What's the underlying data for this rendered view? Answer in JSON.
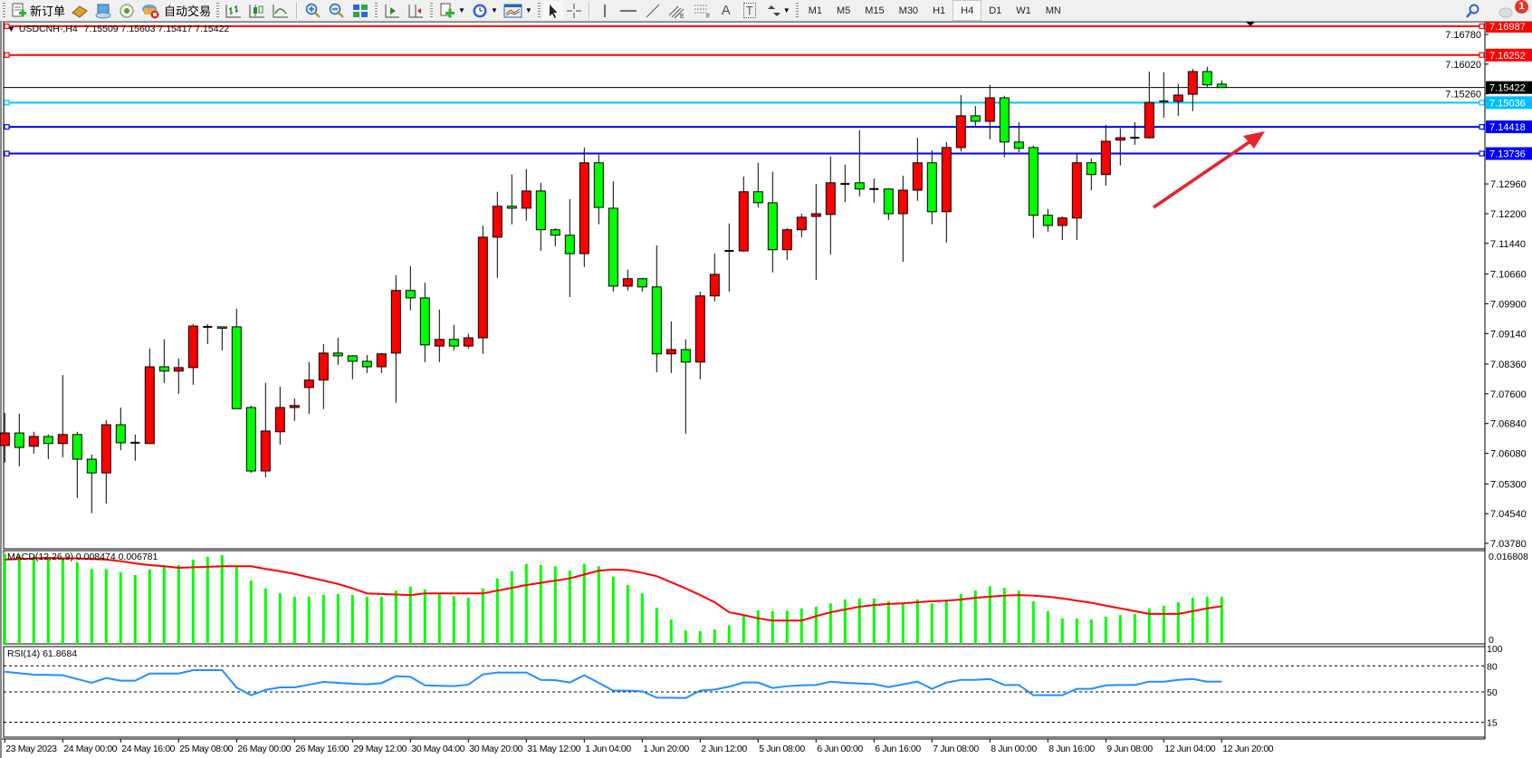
{
  "toolbar": {
    "new_order": "新订单",
    "auto_trading": "自动交易",
    "timeframes": [
      "M1",
      "M5",
      "M15",
      "M30",
      "H1",
      "H4",
      "D1",
      "W1",
      "MN"
    ],
    "active_timeframe": "H4",
    "notification_count": "1",
    "tools": {
      "fibo_label": "E",
      "fibo_channel_label": "F",
      "text_label": "A",
      "text_label_tool": "T"
    }
  },
  "chart": {
    "symbol_timeframe": "USDCNH-,H4",
    "ohlc": "7.15509 7.15603 7.15417 7.15422",
    "macd_label": "MACD(12,26,9) 0.008474 0.006781",
    "rsi_label": "RSI(14) 61.8684",
    "colors": {
      "bull": "#ff0000",
      "bear": "#00ff00",
      "macd_hist": "#00ff00",
      "macd_signal": "#ff0000",
      "rsi": "#1e90ff",
      "arrow": "#e8222a"
    }
  },
  "chart_data": {
    "type": "candlestick",
    "price_axis_ticks": [
      "7.16780",
      "7.16020",
      "7.15260",
      "7.12960",
      "7.12200",
      "7.11440",
      "7.10660",
      "7.09900",
      "7.09140",
      "7.08360",
      "7.07600",
      "7.06840",
      "7.06080",
      "7.05300",
      "7.04540",
      "7.03780"
    ],
    "price_range": [
      7.0378,
      7.16987
    ],
    "horizontal_lines": [
      {
        "price": "7.16987",
        "color": "#ff0000"
      },
      {
        "price": "7.16252",
        "color": "#ff0000"
      },
      {
        "price": "7.15036",
        "color": "#00bfff"
      },
      {
        "price": "7.14418",
        "color": "#0000ff"
      },
      {
        "price": "7.13736",
        "color": "#0000ff"
      }
    ],
    "bid_line": {
      "price": "7.15422",
      "color": "#000000"
    },
    "time_labels": [
      "23 May 2023",
      "24 May 00:00",
      "24 May 16:00",
      "25 May 08:00",
      "26 May 00:00",
      "26 May 16:00",
      "29 May 12:00",
      "30 May 04:00",
      "30 May 20:00",
      "31 May 12:00",
      "1 Jun 04:00",
      "1 Jun 20:00",
      "2 Jun 12:00",
      "5 Jun 08:00",
      "6 Jun 00:00",
      "6 Jun 16:00",
      "7 Jun 08:00",
      "8 Jun 00:00",
      "8 Jun 16:00",
      "9 Jun 08:00",
      "12 Jun 04:00",
      "12 Jun 20:00"
    ],
    "ohlc_columns": [
      "open",
      "high",
      "low",
      "close"
    ],
    "candles": [
      [
        7.0628,
        7.0711,
        7.0584,
        7.066
      ],
      [
        7.066,
        7.0709,
        7.0575,
        7.0623
      ],
      [
        7.0626,
        7.0663,
        7.0607,
        7.0651
      ],
      [
        7.0651,
        7.0656,
        7.0593,
        7.0633
      ],
      [
        7.0633,
        7.0808,
        7.0598,
        7.0656
      ],
      [
        7.0656,
        7.0663,
        7.0494,
        7.0593
      ],
      [
        7.0593,
        7.0605,
        7.0455,
        7.0558
      ],
      [
        7.0558,
        7.0693,
        7.048,
        7.0681
      ],
      [
        7.0681,
        7.0725,
        7.0616,
        7.0635
      ],
      [
        7.0635,
        7.0656,
        7.0589,
        7.0635
      ],
      [
        7.0633,
        7.0876,
        7.0633,
        7.0829
      ],
      [
        7.0829,
        7.0899,
        7.0788,
        7.0818
      ],
      [
        7.0818,
        7.085,
        7.076,
        7.0827
      ],
      [
        7.0827,
        7.0938,
        7.0783,
        7.0933
      ],
      [
        7.0931,
        7.0938,
        7.0887,
        7.0931
      ],
      [
        7.0931,
        7.0931,
        7.0871,
        7.093
      ],
      [
        7.0931,
        7.0977,
        7.0722,
        7.0722
      ],
      [
        7.0725,
        7.073,
        7.0558,
        7.0563
      ],
      [
        7.0563,
        7.0788,
        7.0547,
        7.0665
      ],
      [
        7.0663,
        7.0778,
        7.063,
        7.0725
      ],
      [
        7.0725,
        7.0748,
        7.0691,
        7.073
      ],
      [
        7.0776,
        7.0841,
        7.0709,
        7.0795
      ],
      [
        7.0795,
        7.0887,
        7.0721,
        7.0864
      ],
      [
        7.0864,
        7.0903,
        7.0834,
        7.0857
      ],
      [
        7.0857,
        7.0859,
        7.0797,
        7.0843
      ],
      [
        7.0843,
        7.0859,
        7.0813,
        7.0829
      ],
      [
        7.0829,
        7.0864,
        7.0813,
        7.0862
      ],
      [
        7.0864,
        7.1063,
        7.0737,
        7.1024
      ],
      [
        7.1024,
        7.1086,
        7.0973,
        7.1005
      ],
      [
        7.1005,
        7.1044,
        7.0841,
        7.0885
      ],
      [
        7.0882,
        7.0975,
        7.0841,
        7.0899
      ],
      [
        7.0899,
        7.0936,
        7.0871,
        7.0882
      ],
      [
        7.0882,
        7.0913,
        7.0876,
        7.0903
      ],
      [
        7.0903,
        7.119,
        7.0862,
        7.116
      ],
      [
        7.116,
        7.1276,
        7.1056,
        7.1239
      ],
      [
        7.1239,
        7.132,
        7.1193,
        7.1234
      ],
      [
        7.1234,
        7.1334,
        7.1202,
        7.1278
      ],
      [
        7.1278,
        7.1299,
        7.1125,
        7.1179
      ],
      [
        7.1179,
        7.1183,
        7.1137,
        7.1165
      ],
      [
        7.1165,
        7.1257,
        7.1007,
        7.1118
      ],
      [
        7.1118,
        7.1389,
        7.1084,
        7.135
      ],
      [
        7.135,
        7.1371,
        7.1193,
        7.1236
      ],
      [
        7.1234,
        7.1303,
        7.1021,
        7.1035
      ],
      [
        7.1035,
        7.1077,
        7.1024,
        7.1054
      ],
      [
        7.1054,
        7.1056,
        7.1021,
        7.1033
      ],
      [
        7.1033,
        7.1139,
        7.0815,
        7.0862
      ],
      [
        7.0862,
        7.0945,
        7.0813,
        7.0873
      ],
      [
        7.0873,
        7.0899,
        7.0658,
        7.0841
      ],
      [
        7.0841,
        7.1021,
        7.0797,
        7.101
      ],
      [
        7.101,
        7.1118,
        7.0996,
        7.1065
      ],
      [
        7.1125,
        7.1195,
        7.1021,
        7.1125
      ],
      [
        7.1125,
        7.1315,
        7.1123,
        7.1276
      ],
      [
        7.1276,
        7.135,
        7.1236,
        7.1248
      ],
      [
        7.1248,
        7.1327,
        7.107,
        7.1128
      ],
      [
        7.1128,
        7.1183,
        7.1102,
        7.1179
      ],
      [
        7.1179,
        7.122,
        7.116,
        7.1211
      ],
      [
        7.1213,
        7.1296,
        7.1051,
        7.122
      ],
      [
        7.1218,
        7.1366,
        7.1116,
        7.1299
      ],
      [
        7.1296,
        7.1345,
        7.125,
        7.1296
      ],
      [
        7.1299,
        7.1433,
        7.1264,
        7.1283
      ],
      [
        7.1283,
        7.131,
        7.1248,
        7.1283
      ],
      [
        7.1283,
        7.1285,
        7.1204,
        7.122
      ],
      [
        7.122,
        7.1317,
        7.1097,
        7.128
      ],
      [
        7.128,
        7.1414,
        7.1253,
        7.135
      ],
      [
        7.135,
        7.1382,
        7.1193,
        7.1225
      ],
      [
        7.1225,
        7.1403,
        7.1146,
        7.1389
      ],
      [
        7.1389,
        7.1523,
        7.1379,
        7.147
      ],
      [
        7.147,
        7.1495,
        7.1442,
        7.1456
      ],
      [
        7.1456,
        7.1549,
        7.141,
        7.1516
      ],
      [
        7.1516,
        7.1521,
        7.1364,
        7.1403
      ],
      [
        7.1403,
        7.1454,
        7.1377,
        7.1387
      ],
      [
        7.1389,
        7.1394,
        7.1158,
        7.1216
      ],
      [
        7.1216,
        7.1232,
        7.1174,
        7.119
      ],
      [
        7.119,
        7.1213,
        7.1153,
        7.1209
      ],
      [
        7.1209,
        7.1371,
        7.1153,
        7.135
      ],
      [
        7.135,
        7.1361,
        7.128,
        7.132
      ],
      [
        7.132,
        7.1447,
        7.1292,
        7.1405
      ],
      [
        7.1408,
        7.1438,
        7.1343,
        7.1414
      ],
      [
        7.1414,
        7.1454,
        7.1396,
        7.1414
      ],
      [
        7.1414,
        7.1583,
        7.1412,
        7.1504
      ],
      [
        7.1507,
        7.1581,
        7.1465,
        7.1507
      ],
      [
        7.1507,
        7.1551,
        7.147,
        7.1523
      ],
      [
        7.1525,
        7.159,
        7.1482,
        7.1583
      ],
      [
        7.1583,
        7.1595,
        7.1544,
        7.1549
      ],
      [
        7.15509,
        7.15603,
        7.15417,
        7.15422
      ]
    ],
    "macd": {
      "axis_ticks": [
        "0.016808",
        "0"
      ],
      "range": [
        0,
        0.016808
      ],
      "histogram": [
        0.0162,
        0.0159,
        0.0158,
        0.0155,
        0.0154,
        0.0147,
        0.0135,
        0.0135,
        0.0129,
        0.0124,
        0.0134,
        0.0139,
        0.0142,
        0.0152,
        0.0157,
        0.016,
        0.014,
        0.0114,
        0.01,
        0.0091,
        0.0085,
        0.0085,
        0.0088,
        0.009,
        0.0088,
        0.0085,
        0.0085,
        0.0096,
        0.0103,
        0.0098,
        0.009,
        0.0086,
        0.0083,
        0.01,
        0.0118,
        0.0131,
        0.0144,
        0.0142,
        0.014,
        0.0132,
        0.0144,
        0.014,
        0.0121,
        0.0106,
        0.0091,
        0.0065,
        0.0044,
        0.0024,
        0.0023,
        0.0026,
        0.0033,
        0.0051,
        0.006,
        0.0059,
        0.006,
        0.0064,
        0.0067,
        0.0073,
        0.008,
        0.0082,
        0.0082,
        0.0077,
        0.0073,
        0.008,
        0.0073,
        0.008,
        0.009,
        0.0096,
        0.0104,
        0.0101,
        0.0096,
        0.0077,
        0.0059,
        0.0046,
        0.0046,
        0.0044,
        0.0049,
        0.0052,
        0.0054,
        0.0064,
        0.0069,
        0.0075,
        0.0083,
        0.0085,
        0.008474
      ],
      "signal": [
        0.0152,
        0.0153,
        0.0154,
        0.0155,
        0.0154,
        0.0154,
        0.0153,
        0.0152,
        0.0149,
        0.0145,
        0.0142,
        0.014,
        0.0137,
        0.0138,
        0.0139,
        0.014,
        0.014,
        0.014,
        0.0135,
        0.0131,
        0.0126,
        0.012,
        0.0114,
        0.0108,
        0.01,
        0.0091,
        0.009,
        0.0089,
        0.0088,
        0.0091,
        0.0091,
        0.0091,
        0.0091,
        0.0091,
        0.0096,
        0.0101,
        0.0106,
        0.011,
        0.0114,
        0.0118,
        0.0125,
        0.0132,
        0.0134,
        0.0133,
        0.0128,
        0.0122,
        0.0111,
        0.01,
        0.0088,
        0.0075,
        0.0057,
        0.0052,
        0.0046,
        0.0042,
        0.0042,
        0.0042,
        0.005,
        0.0057,
        0.0062,
        0.0067,
        0.007,
        0.0072,
        0.0073,
        0.0075,
        0.0077,
        0.0078,
        0.008,
        0.0083,
        0.0085,
        0.0087,
        0.0088,
        0.0087,
        0.0085,
        0.0082,
        0.0078,
        0.0074,
        0.0069,
        0.0064,
        0.0059,
        0.0054,
        0.0054,
        0.0054,
        0.0059,
        0.0064,
        0.006781
      ]
    },
    "rsi": {
      "axis_ticks": [
        "100",
        "80",
        "50",
        "15"
      ],
      "levels": [
        80,
        50,
        15
      ],
      "range": [
        0,
        100
      ],
      "values": [
        73.3,
        71.5,
        69.9,
        69.6,
        69.2,
        64.8,
        60.5,
        66.0,
        62.9,
        62.9,
        71.2,
        71.2,
        71.2,
        75.1,
        75.1,
        75.1,
        54.9,
        46.2,
        52.4,
        55.2,
        55.2,
        58.3,
        61.5,
        60.4,
        59.4,
        58.7,
        60.1,
        68.1,
        67.4,
        57.6,
        57.1,
        56.6,
        58.4,
        70.2,
        72.3,
        72.3,
        72.3,
        63.9,
        63.6,
        60.8,
        69.2,
        60.5,
        51.4,
        51.4,
        50.7,
        43.4,
        43.2,
        43.0,
        51.4,
        52.8,
        56.0,
        60.8,
        60.8,
        54.5,
        56.6,
        57.6,
        58.0,
        61.8,
        60.5,
        59.7,
        59.0,
        55.5,
        58.7,
        61.8,
        53.5,
        60.8,
        63.9,
        63.9,
        64.9,
        58.0,
        58.0,
        46.2,
        46.2,
        46.2,
        53.5,
        53.5,
        57.6,
        58.0,
        58.0,
        61.8,
        61.8,
        63.9,
        64.9,
        61.8,
        61.8684
      ]
    }
  }
}
